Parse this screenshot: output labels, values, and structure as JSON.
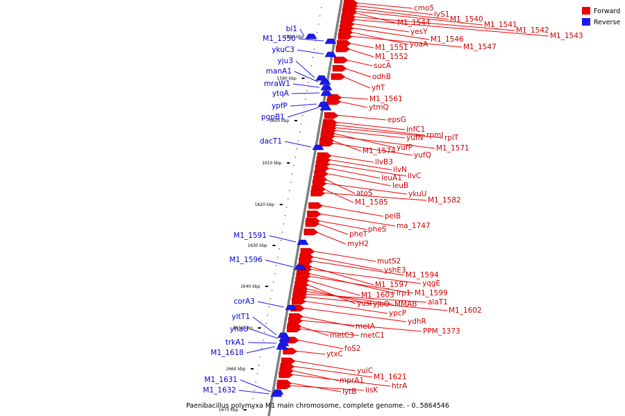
{
  "legend": {
    "forward": {
      "label": "Forward",
      "color": "#ee0000"
    },
    "reverse": {
      "label": "Reverse",
      "color": "#1a1aee"
    }
  },
  "caption": "Paenibacillus polymyxa M1 main chromosome, complete genome. - 0..5864546",
  "ticks": [
    "1580 kbp",
    "1590 kbp",
    "1600 kbp",
    "1610 kbp",
    "1620 kbp",
    "1630 kbp",
    "1640 kbp",
    "1650 kbp",
    "1660 kbp",
    "1670 kbp"
  ],
  "forward_genes": [
    "cmo5",
    "lyS1",
    "M1_1540",
    "M1_1541",
    "M1_1544",
    "M1_1542",
    "M1_1543",
    "yesY",
    "M1_1546",
    "yoaA",
    "M1_1547",
    "M1_1551",
    "M1_1552",
    "sucA",
    "odhB",
    "yfiT",
    "M1_1561",
    "ytmQ",
    "epsG",
    "infC1",
    "rpmI",
    "rplT",
    "yufN",
    "yufP",
    "M1_1571",
    "M1_1574",
    "yufQ",
    "ilvB3",
    "ilvN",
    "ilvC",
    "leuA1",
    "leuB",
    "atoS",
    "ykuU",
    "M1_1585",
    "M1_1582",
    "pelB",
    "ma_1747",
    "pheS",
    "pheT",
    "myH2",
    "mutS2",
    "yshE3",
    "M1_1594",
    "M1_1597",
    "yqgE",
    "lrp1",
    "M1_1599",
    "M1_1603",
    "yusI",
    "yjbO",
    "MMAB",
    "alaT1",
    "M1_1602",
    "ypcP",
    "ydhR",
    "metA",
    "PPM_1373",
    "metC3",
    "metC1",
    "foS2",
    "ytxC",
    "yuiC",
    "M1_1621",
    "mprA1",
    "htrA",
    "lytB",
    "lisK"
  ],
  "reverse_genes": [
    "bl1",
    "M1_1550",
    "ykuC3",
    "yju3",
    "manA1",
    "mraW1",
    "ytqA",
    "ypfP",
    "pgpB1",
    "dacT1",
    "M1_1591",
    "M1_1596",
    "corA3",
    "yitT1",
    "yhaU",
    "trkA1",
    "M1_1618",
    "M1_1631",
    "M1_1632"
  ]
}
